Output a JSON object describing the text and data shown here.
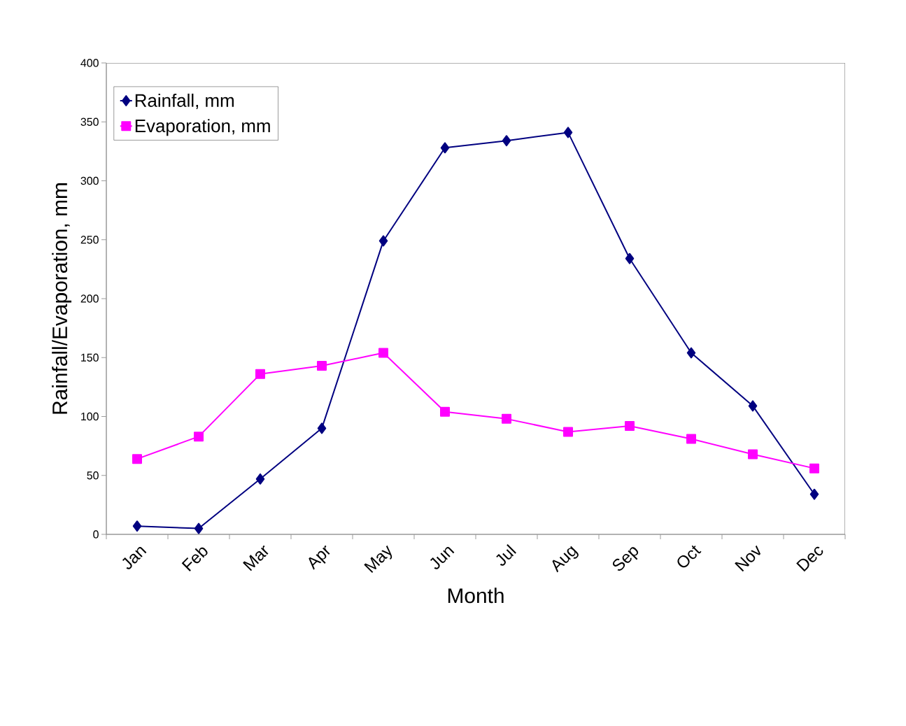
{
  "chart_data": {
    "type": "line",
    "xlabel": "Month",
    "ylabel": "Rainfall/Evaporation, mm",
    "categories": [
      "Jan",
      "Feb",
      "Mar",
      "Apr",
      "May",
      "Jun",
      "Jul",
      "Aug",
      "Sep",
      "Oct",
      "Nov",
      "Dec"
    ],
    "series": [
      {
        "name": "Rainfall, mm",
        "color": "#000080",
        "marker": "diamond",
        "values": [
          7,
          5,
          47,
          90,
          249,
          328,
          334,
          341,
          234,
          154,
          109,
          34
        ]
      },
      {
        "name": "Evaporation, mm",
        "color": "#ff00ff",
        "marker": "square",
        "values": [
          64,
          83,
          136,
          143,
          154,
          104,
          98,
          87,
          92,
          81,
          68,
          56
        ]
      }
    ],
    "ylim": [
      0,
      400
    ],
    "yticks": [
      0,
      50,
      100,
      150,
      200,
      250,
      300,
      350,
      400
    ],
    "grid": false,
    "legend": "top left",
    "line_style": "solid"
  }
}
